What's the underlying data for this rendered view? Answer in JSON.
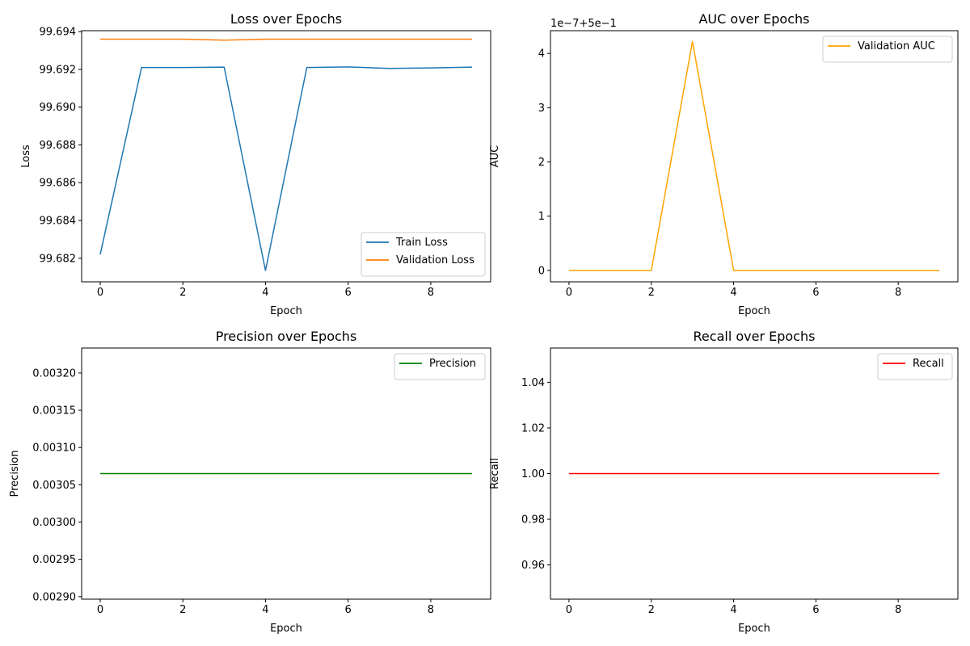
{
  "chart_data": [
    {
      "type": "line",
      "title": "Loss over Epochs",
      "xlabel": "Epoch",
      "ylabel": "Loss",
      "offset_text": "",
      "x": [
        0,
        1,
        2,
        3,
        4,
        5,
        6,
        7,
        8,
        9
      ],
      "xlim": [
        -0.45,
        9.45
      ],
      "ylim": [
        99.68075,
        99.69405
      ],
      "xticks": [
        0,
        2,
        4,
        6,
        8
      ],
      "xtick_labels": [
        "0",
        "2",
        "4",
        "6",
        "8"
      ],
      "yticks": [
        99.682,
        99.684,
        99.686,
        99.688,
        99.69,
        99.692,
        99.694
      ],
      "ytick_labels": [
        "99.682",
        "99.684",
        "99.686",
        "99.688",
        "99.690",
        "99.692",
        "99.694"
      ],
      "grid": false,
      "legend": "lower right",
      "series": [
        {
          "name": "Train Loss",
          "color": "#1f77b4",
          "values": [
            99.6822,
            99.6921,
            99.6921,
            99.69212,
            99.68135,
            99.6921,
            99.69213,
            99.69205,
            99.69208,
            99.69212
          ]
        },
        {
          "name": "Validation Loss",
          "color": "#ff7f0e",
          "values": [
            99.6936,
            99.6936,
            99.6936,
            99.69355,
            99.6936,
            99.6936,
            99.6936,
            99.6936,
            99.6936,
            99.6936
          ]
        }
      ]
    },
    {
      "type": "line",
      "title": "AUC over Epochs",
      "xlabel": "Epoch",
      "ylabel": "AUC",
      "offset_text": "1e−7+5e−1",
      "x": [
        0,
        1,
        2,
        3,
        4,
        5,
        6,
        7,
        8,
        9
      ],
      "xlim": [
        -0.45,
        9.45
      ],
      "ylim": [
        -0.21,
        4.42
      ],
      "xticks": [
        0,
        2,
        4,
        6,
        8
      ],
      "xtick_labels": [
        "0",
        "2",
        "4",
        "6",
        "8"
      ],
      "yticks": [
        0,
        1,
        2,
        3,
        4
      ],
      "ytick_labels": [
        "0",
        "1",
        "2",
        "3",
        "4"
      ],
      "grid": false,
      "legend": "upper right",
      "series": [
        {
          "name": "Validation AUC",
          "color": "#ffa500",
          "values": [
            0,
            0,
            0,
            4.22,
            0,
            0,
            0,
            0,
            0,
            0
          ]
        }
      ]
    },
    {
      "type": "line",
      "title": "Precision over Epochs",
      "xlabel": "Epoch",
      "ylabel": "Precision",
      "offset_text": "",
      "x": [
        0,
        1,
        2,
        3,
        4,
        5,
        6,
        7,
        8,
        9
      ],
      "xlim": [
        -0.45,
        9.45
      ],
      "ylim": [
        0.0028965,
        0.0032335
      ],
      "xticks": [
        0,
        2,
        4,
        6,
        8
      ],
      "xtick_labels": [
        "0",
        "2",
        "4",
        "6",
        "8"
      ],
      "yticks": [
        0.0029,
        0.00295,
        0.003,
        0.00305,
        0.0031,
        0.00315,
        0.0032
      ],
      "ytick_labels": [
        "0.00290",
        "0.00295",
        "0.00300",
        "0.00305",
        "0.00310",
        "0.00315",
        "0.00320"
      ],
      "grid": false,
      "legend": "upper right",
      "series": [
        {
          "name": "Precision",
          "color": "#008000",
          "values": [
            0.003065,
            0.003065,
            0.003065,
            0.003065,
            0.003065,
            0.003065,
            0.003065,
            0.003065,
            0.003065,
            0.003065
          ]
        }
      ]
    },
    {
      "type": "line",
      "title": "Recall over Epochs",
      "xlabel": "Epoch",
      "ylabel": "Recall",
      "offset_text": "",
      "x": [
        0,
        1,
        2,
        3,
        4,
        5,
        6,
        7,
        8,
        9
      ],
      "xlim": [
        -0.45,
        9.45
      ],
      "ylim": [
        0.945,
        1.055
      ],
      "xticks": [
        0,
        2,
        4,
        6,
        8
      ],
      "xtick_labels": [
        "0",
        "2",
        "4",
        "6",
        "8"
      ],
      "yticks": [
        0.96,
        0.98,
        1.0,
        1.02,
        1.04
      ],
      "ytick_labels": [
        "0.96",
        "0.98",
        "1.00",
        "1.02",
        "1.04"
      ],
      "grid": false,
      "legend": "upper right",
      "series": [
        {
          "name": "Recall",
          "color": "#ff0000",
          "values": [
            1,
            1,
            1,
            1,
            1,
            1,
            1,
            1,
            1,
            1
          ]
        }
      ]
    }
  ]
}
